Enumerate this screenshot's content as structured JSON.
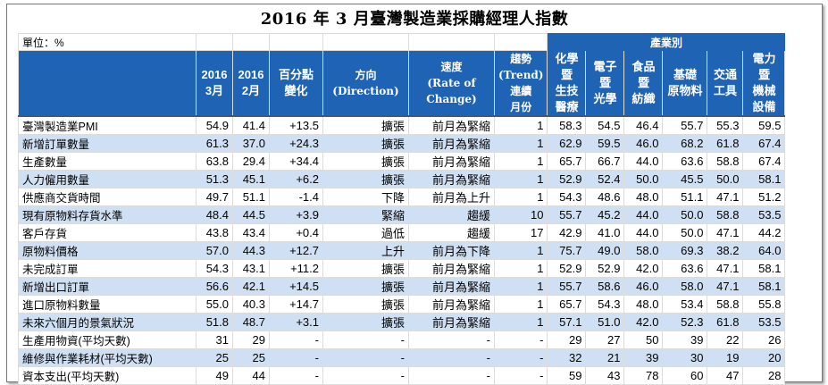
{
  "title": "2016 年 3 月臺灣製造業採購經理人指數",
  "unit_label": "單位：%",
  "industry_group_label": "產業別",
  "columns": {
    "mar": [
      "2016",
      "3月"
    ],
    "feb": [
      "2016",
      "2月"
    ],
    "change": [
      "百分點",
      "變化"
    ],
    "direction": [
      "方向",
      "(Direction)"
    ],
    "rate": [
      "速度",
      "(Rate of",
      "Change)"
    ],
    "trend": [
      "趨勢",
      "(Trend)",
      "連續",
      "月份"
    ],
    "ind1": [
      "化學",
      "暨",
      "生技",
      "醫療"
    ],
    "ind2": [
      "電子",
      "暨",
      "光學"
    ],
    "ind3": [
      "食品",
      "暨",
      "紡織"
    ],
    "ind4": [
      "基礎",
      "原物料"
    ],
    "ind5": [
      "交通",
      "工具"
    ],
    "ind6": [
      "電力",
      "暨",
      "機械",
      "設備"
    ]
  },
  "rows": [
    {
      "label": "臺灣製造業PMI",
      "mar": "54.9",
      "feb": "41.4",
      "chg": "+13.5",
      "dir": "擴張",
      "rate": "前月為緊縮",
      "trend": "1",
      "i1": "58.3",
      "i2": "54.5",
      "i3": "46.4",
      "i4": "55.7",
      "i5": "55.3",
      "i6": "59.5"
    },
    {
      "label": "新增訂單數量",
      "mar": "61.3",
      "feb": "37.0",
      "chg": "+24.3",
      "dir": "擴張",
      "rate": "前月為緊縮",
      "trend": "1",
      "i1": "62.9",
      "i2": "59.5",
      "i3": "46.0",
      "i4": "68.2",
      "i5": "61.8",
      "i6": "67.4"
    },
    {
      "label": "生產數量",
      "mar": "63.8",
      "feb": "29.4",
      "chg": "+34.4",
      "dir": "擴張",
      "rate": "前月為緊縮",
      "trend": "1",
      "i1": "65.7",
      "i2": "66.7",
      "i3": "44.0",
      "i4": "63.6",
      "i5": "58.8",
      "i6": "67.4"
    },
    {
      "label": "人力僱用數量",
      "mar": "51.3",
      "feb": "45.1",
      "chg": "+6.2",
      "dir": "擴張",
      "rate": "前月為緊縮",
      "trend": "1",
      "i1": "52.9",
      "i2": "52.4",
      "i3": "50.0",
      "i4": "45.5",
      "i5": "50.0",
      "i6": "58.1"
    },
    {
      "label": "供應商交貨時間",
      "mar": "49.7",
      "feb": "51.1",
      "chg": "-1.4",
      "dir": "下降",
      "rate": "前月為上升",
      "trend": "1",
      "i1": "54.3",
      "i2": "48.6",
      "i3": "48.0",
      "i4": "51.1",
      "i5": "47.1",
      "i6": "51.2"
    },
    {
      "label": "現有原物料存貨水準",
      "mar": "48.4",
      "feb": "44.5",
      "chg": "+3.9",
      "dir": "緊縮",
      "rate": "趨緩",
      "trend": "10",
      "i1": "55.7",
      "i2": "45.2",
      "i3": "44.0",
      "i4": "50.0",
      "i5": "58.8",
      "i6": "53.5"
    },
    {
      "label": "客戶存貨",
      "mar": "43.8",
      "feb": "43.4",
      "chg": "+0.4",
      "dir": "過低",
      "rate": "趨緩",
      "trend": "17",
      "i1": "42.9",
      "i2": "41.0",
      "i3": "44.0",
      "i4": "50.0",
      "i5": "47.1",
      "i6": "44.2"
    },
    {
      "label": "原物料價格",
      "mar": "57.0",
      "feb": "44.3",
      "chg": "+12.7",
      "dir": "上升",
      "rate": "前月為下降",
      "trend": "1",
      "i1": "75.7",
      "i2": "49.0",
      "i3": "58.0",
      "i4": "69.3",
      "i5": "38.2",
      "i6": "64.0"
    },
    {
      "label": "未完成訂單",
      "mar": "54.3",
      "feb": "43.1",
      "chg": "+11.2",
      "dir": "擴張",
      "rate": "前月為緊縮",
      "trend": "1",
      "i1": "52.9",
      "i2": "52.9",
      "i3": "42.0",
      "i4": "63.6",
      "i5": "47.1",
      "i6": "58.1"
    },
    {
      "label": "新增出口訂單",
      "mar": "56.6",
      "feb": "42.1",
      "chg": "+14.5",
      "dir": "擴張",
      "rate": "前月為緊縮",
      "trend": "1",
      "i1": "55.7",
      "i2": "58.6",
      "i3": "46.0",
      "i4": "58.0",
      "i5": "47.1",
      "i6": "58.1"
    },
    {
      "label": "進口原物料數量",
      "mar": "55.0",
      "feb": "40.3",
      "chg": "+14.7",
      "dir": "擴張",
      "rate": "前月為緊縮",
      "trend": "1",
      "i1": "65.7",
      "i2": "54.3",
      "i3": "48.0",
      "i4": "53.4",
      "i5": "58.8",
      "i6": "55.8"
    },
    {
      "label": "未來六個月的景氣狀況",
      "mar": "51.8",
      "feb": "48.7",
      "chg": "+3.1",
      "dir": "擴張",
      "rate": "前月為緊縮",
      "trend": "1",
      "i1": "57.1",
      "i2": "51.0",
      "i3": "42.0",
      "i4": "52.3",
      "i5": "61.8",
      "i6": "53.5"
    },
    {
      "label": "生產用物資(平均天數)",
      "mar": "31",
      "feb": "29",
      "chg": "-",
      "dir": "-",
      "rate": "-",
      "trend": "-",
      "i1": "29",
      "i2": "27",
      "i3": "50",
      "i4": "39",
      "i5": "22",
      "i6": "26"
    },
    {
      "label": "維修與作業耗材(平均天數)",
      "mar": "25",
      "feb": "25",
      "chg": "-",
      "dir": "-",
      "rate": "-",
      "trend": "-",
      "i1": "32",
      "i2": "21",
      "i3": "39",
      "i4": "30",
      "i5": "19",
      "i6": "20"
    },
    {
      "label": "資本支出(平均天數)",
      "mar": "49",
      "feb": "44",
      "chg": "-",
      "dir": "-",
      "rate": "-",
      "trend": "-",
      "i1": "59",
      "i2": "43",
      "i3": "78",
      "i4": "60",
      "i5": "47",
      "i6": "28"
    }
  ]
}
